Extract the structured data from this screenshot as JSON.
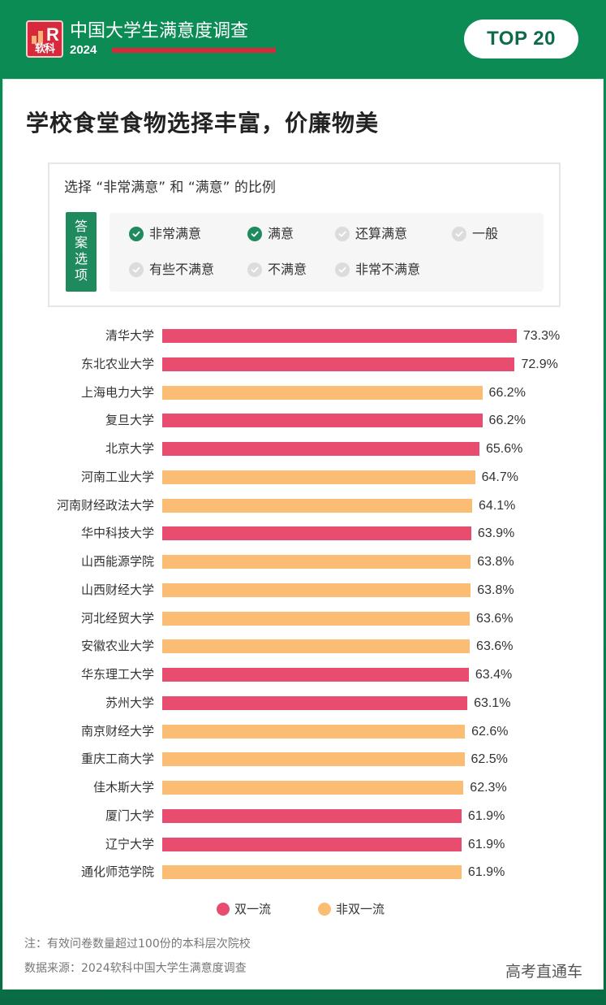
{
  "header": {
    "logo_text": "软科",
    "logo_letter": "R",
    "brand_title": "中国大学生满意度调查",
    "brand_year": "2024",
    "badge": "TOP 20"
  },
  "title": "学校食堂食物选择丰富，价廉物美",
  "options": {
    "heading": "选择 “非常满意” 和 “满意” 的比例",
    "tag": [
      "答",
      "案",
      "选",
      "项"
    ],
    "items": [
      {
        "label": "非常满意",
        "checked": true
      },
      {
        "label": "满意",
        "checked": true
      },
      {
        "label": "还算满意",
        "checked": false
      },
      {
        "label": "一般",
        "checked": false
      },
      {
        "label": "有些不满意",
        "checked": false
      },
      {
        "label": "不满意",
        "checked": false
      },
      {
        "label": "非常不满意",
        "checked": false
      }
    ]
  },
  "colors": {
    "double_first_class": "#e84c6e",
    "non_double_first_class": "#fbbc74",
    "green": "#1f8a5e",
    "brand_red": "#d8283c"
  },
  "chart_data": {
    "type": "bar",
    "orientation": "horizontal",
    "title": "学校食堂食物选择丰富，价廉物美",
    "subtitle": "选择 “非常满意” 和 “满意” 的比例",
    "xlabel": "",
    "ylabel": "",
    "unit": "%",
    "grid": false,
    "legend_position": "bottom",
    "categories": [
      "清华大学",
      "东北农业大学",
      "上海电力大学",
      "复旦大学",
      "北京大学",
      "河南工业大学",
      "河南财经政法大学",
      "华中科技大学",
      "山西能源学院",
      "山西财经大学",
      "河北经贸大学",
      "安徽农业大学",
      "华东理工大学",
      "苏州大学",
      "南京财经大学",
      "重庆工商大学",
      "佳木斯大学",
      "厦门大学",
      "辽宁大学",
      "通化师范学院"
    ],
    "values": [
      73.3,
      72.9,
      66.2,
      66.2,
      65.6,
      64.7,
      64.1,
      63.9,
      63.8,
      63.8,
      63.6,
      63.6,
      63.4,
      63.1,
      62.6,
      62.5,
      62.3,
      61.9,
      61.9,
      61.9
    ],
    "labels": [
      "73.3%",
      "72.9%",
      "66.2%",
      "66.2%",
      "65.6%",
      "64.7%",
      "64.1%",
      "63.9%",
      "63.8%",
      "63.8%",
      "63.6%",
      "63.6%",
      "63.4%",
      "63.1%",
      "62.6%",
      "62.5%",
      "62.3%",
      "61.9%",
      "61.9%",
      "61.9%"
    ],
    "groups": [
      "双一流",
      "双一流",
      "非双一流",
      "双一流",
      "双一流",
      "非双一流",
      "非双一流",
      "双一流",
      "非双一流",
      "非双一流",
      "非双一流",
      "非双一流",
      "双一流",
      "双一流",
      "非双一流",
      "非双一流",
      "非双一流",
      "双一流",
      "双一流",
      "非双一流"
    ],
    "legend": [
      {
        "name": "双一流",
        "color": "#e84c6e"
      },
      {
        "name": "非双一流",
        "color": "#fbbc74"
      }
    ]
  },
  "footer": {
    "note": "注：有效问卷数量超过100份的本科层次院校",
    "source": "数据来源：2024软科中国大学生满意度调查",
    "watermark": "高考直通车"
  }
}
